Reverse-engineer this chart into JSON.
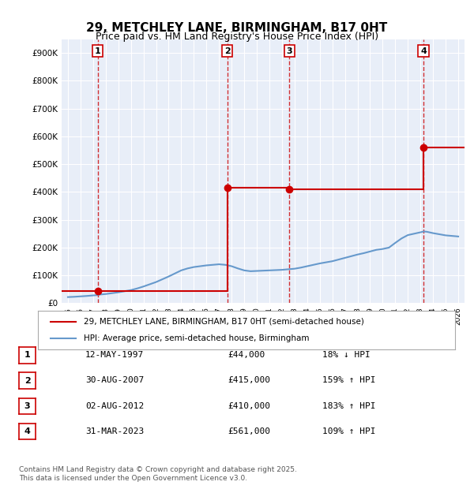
{
  "title": "29, METCHLEY LANE, BIRMINGHAM, B17 0HT",
  "subtitle": "Price paid vs. HM Land Registry's House Price Index (HPI)",
  "background_color": "#e8eef8",
  "plot_background": "#e8eef8",
  "ylim": [
    0,
    950000
  ],
  "xlim": [
    1994.5,
    2026.5
  ],
  "yticks": [
    0,
    100000,
    200000,
    300000,
    400000,
    500000,
    600000,
    700000,
    800000,
    900000
  ],
  "ytick_labels": [
    "£0",
    "£100K",
    "£200K",
    "£300K",
    "£400K",
    "£500K",
    "£600K",
    "£700K",
    "£800K",
    "£900K"
  ],
  "xticks": [
    1995,
    1996,
    1997,
    1998,
    1999,
    2000,
    2001,
    2002,
    2003,
    2004,
    2005,
    2006,
    2007,
    2008,
    2009,
    2010,
    2011,
    2012,
    2013,
    2014,
    2015,
    2016,
    2017,
    2018,
    2019,
    2020,
    2021,
    2022,
    2023,
    2024,
    2025,
    2026
  ],
  "sales": [
    {
      "num": 1,
      "year": 1997.37,
      "price": 44000,
      "label": "1",
      "date": "12-MAY-1997",
      "pct": "18%",
      "dir": "↓"
    },
    {
      "num": 2,
      "year": 2007.66,
      "price": 415000,
      "label": "2",
      "date": "30-AUG-2007",
      "pct": "159%",
      "dir": "↑"
    },
    {
      "num": 3,
      "year": 2012.59,
      "price": 410000,
      "label": "3",
      "date": "02-AUG-2012",
      "pct": "183%",
      "dir": "↑"
    },
    {
      "num": 4,
      "year": 2023.25,
      "price": 561000,
      "label": "4",
      "date": "31-MAR-2023",
      "pct": "109%",
      "dir": "↑"
    }
  ],
  "hpi_x": [
    1995,
    1995.5,
    1996,
    1996.5,
    1997,
    1997.37,
    1997.5,
    1998,
    1998.5,
    1999,
    1999.5,
    2000,
    2000.5,
    2001,
    2001.5,
    2002,
    2002.5,
    2003,
    2003.5,
    2004,
    2004.5,
    2005,
    2005.5,
    2006,
    2006.5,
    2007,
    2007.5,
    2008,
    2008.5,
    2009,
    2009.5,
    2010,
    2010.5,
    2011,
    2011.5,
    2012,
    2012.37,
    2012.5,
    2013,
    2013.5,
    2014,
    2014.5,
    2015,
    2015.5,
    2016,
    2016.5,
    2017,
    2017.5,
    2018,
    2018.5,
    2019,
    2019.5,
    2020,
    2020.5,
    2021,
    2021.5,
    2022,
    2022.5,
    2023,
    2023.25,
    2023.5,
    2024,
    2024.5,
    2025,
    2025.5,
    2026
  ],
  "hpi_y": [
    22000,
    23000,
    24500,
    26000,
    28000,
    29000,
    31000,
    33000,
    36000,
    39000,
    43000,
    47000,
    53000,
    60000,
    68000,
    76000,
    86000,
    96000,
    107000,
    118000,
    125000,
    130000,
    133000,
    136000,
    138000,
    140000,
    138000,
    133000,
    125000,
    118000,
    115000,
    116000,
    117000,
    118000,
    119000,
    120000,
    121500,
    122000,
    124000,
    128000,
    133000,
    138000,
    143000,
    147000,
    151000,
    157000,
    163000,
    169000,
    175000,
    180000,
    186000,
    192000,
    195000,
    200000,
    217000,
    233000,
    245000,
    250000,
    255000,
    258000,
    257000,
    252000,
    248000,
    244000,
    242000,
    240000
  ],
  "price_line_color": "#cc0000",
  "hpi_line_color": "#6699cc",
  "vline_color": "#cc0000",
  "legend_items": [
    "29, METCHLEY LANE, BIRMINGHAM, B17 0HT (semi-detached house)",
    "HPI: Average price, semi-detached house, Birmingham"
  ],
  "table_rows": [
    [
      "1",
      "12-MAY-1997",
      "£44,000",
      "18% ↓ HPI"
    ],
    [
      "2",
      "30-AUG-2007",
      "£415,000",
      "159% ↑ HPI"
    ],
    [
      "3",
      "02-AUG-2012",
      "£410,000",
      "183% ↑ HPI"
    ],
    [
      "4",
      "31-MAR-2023",
      "£561,000",
      "109% ↑ HPI"
    ]
  ],
  "footer": "Contains HM Land Registry data © Crown copyright and database right 2025.\nThis data is licensed under the Open Government Licence v3.0."
}
